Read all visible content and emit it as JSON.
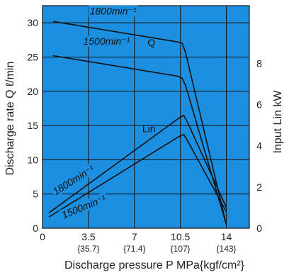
{
  "colors": {
    "plot_background": "#1D8FE0",
    "grid": "#111111",
    "curve": "#111111",
    "label_box": "#1D8FE0"
  },
  "chart_data": {
    "type": "line",
    "title": "",
    "xlabel": "Discharge pressure P  MPa{kgf/cm²}",
    "ylabel_left": "Discharge rate Q  ℓ/min",
    "ylabel_right": "Input  Lin kW",
    "xlim": [
      0,
      15.75
    ],
    "ylim_left": [
      0,
      32.5
    ],
    "ylim_right": [
      0,
      10.8
    ],
    "x_ticks": [
      {
        "value": 0,
        "label": "0",
        "sub": ""
      },
      {
        "value": 3.5,
        "label": "3.5",
        "sub": "{35.7}"
      },
      {
        "value": 7,
        "label": "7",
        "sub": "{71.4}"
      },
      {
        "value": 10.5,
        "label": "10.5",
        "sub": "{107}"
      },
      {
        "value": 14,
        "label": "14",
        "sub": "{143}"
      }
    ],
    "y_ticks_left": [
      {
        "value": 0,
        "label": "0"
      },
      {
        "value": 5,
        "label": "5"
      },
      {
        "value": 10,
        "label": "10"
      },
      {
        "value": 15,
        "label": "15"
      },
      {
        "value": 20,
        "label": "20"
      },
      {
        "value": 25,
        "label": "25"
      },
      {
        "value": 30,
        "label": "30"
      }
    ],
    "y_ticks_right": [
      {
        "value": 0,
        "label": "0"
      },
      {
        "value": 2,
        "label": "2"
      },
      {
        "value": 4,
        "label": "4"
      },
      {
        "value": 6,
        "label": "6"
      },
      {
        "value": 8,
        "label": "8"
      }
    ],
    "grid_x": [
      3.5,
      7,
      10.5,
      14
    ],
    "grid_y": [
      5,
      10,
      15,
      20,
      25,
      30
    ],
    "series": [
      {
        "name": "Q 1800min⁻¹",
        "axis": "left",
        "points": [
          [
            0.8,
            30.2
          ],
          [
            10.3,
            27.2
          ],
          [
            10.65,
            27.0
          ],
          [
            10.9,
            25.6
          ],
          [
            14.0,
            0.5
          ]
        ]
      },
      {
        "name": "Q 1500min⁻¹",
        "axis": "left",
        "points": [
          [
            0.8,
            25.2
          ],
          [
            10.3,
            22.2
          ],
          [
            10.65,
            21.9
          ],
          [
            10.9,
            20.8
          ],
          [
            14.0,
            0.5
          ]
        ]
      },
      {
        "name": "Lin 1800min⁻¹",
        "axis": "right",
        "points": [
          [
            0.5,
            0.75
          ],
          [
            10.4,
            5.35
          ],
          [
            10.75,
            5.48
          ],
          [
            11.0,
            5.2
          ],
          [
            14.0,
            1.0
          ]
        ]
      },
      {
        "name": "Lin 1500min⁻¹",
        "axis": "right",
        "points": [
          [
            0.5,
            0.55
          ],
          [
            10.4,
            4.45
          ],
          [
            10.75,
            4.55
          ],
          [
            11.0,
            4.3
          ],
          [
            14.0,
            0.8
          ]
        ]
      }
    ],
    "annotations": [
      {
        "text": "1800min⁻¹",
        "x": 3.6,
        "y_left": 31.2,
        "rotate": 0,
        "boxed": true
      },
      {
        "text": "Q",
        "x": 8.0,
        "y_left": 26.6,
        "rotate": 0,
        "boxed": false
      },
      {
        "text": "1500min⁻¹",
        "x": 3.1,
        "y_left": 26.8,
        "rotate": 0,
        "boxed": true
      },
      {
        "text": "Lin",
        "x": 7.6,
        "y_left": 14.0,
        "rotate": 0,
        "boxed": false
      },
      {
        "text": "1800min⁻¹",
        "x": 1.0,
        "y_left": 4.8,
        "rotate": -32,
        "boxed": true
      },
      {
        "text": "1500min⁻¹",
        "x": 1.6,
        "y_left": 1.4,
        "rotate": -22,
        "boxed": true
      }
    ]
  }
}
